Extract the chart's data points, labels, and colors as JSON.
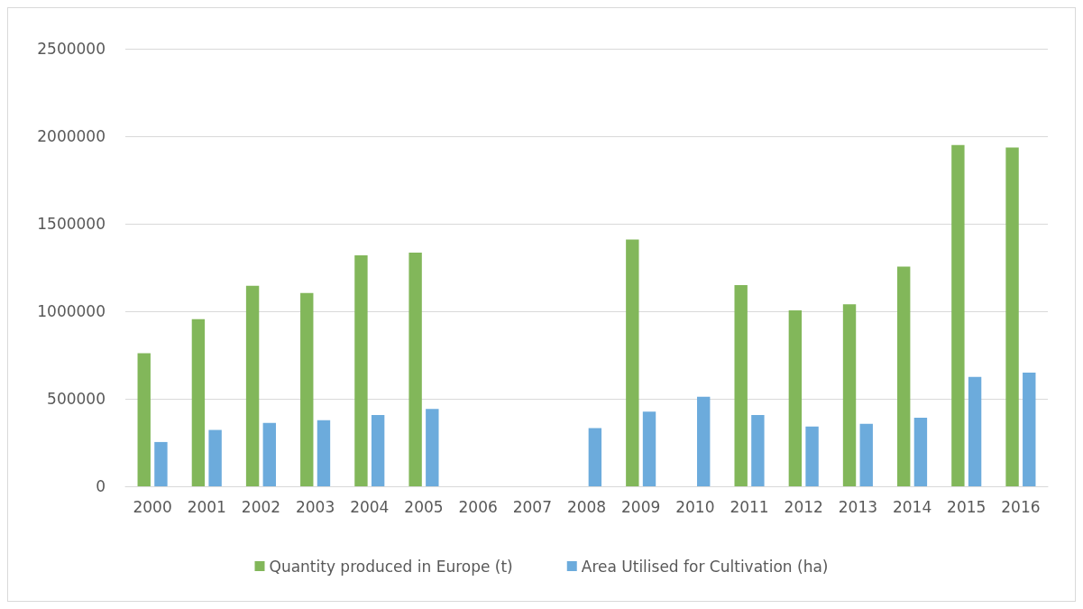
{
  "chart_data": {
    "type": "bar",
    "categories": [
      "2000",
      "2001",
      "2002",
      "2003",
      "2004",
      "2005",
      "2006",
      "2007",
      "2008",
      "2009",
      "2010",
      "2011",
      "2012",
      "2013",
      "2014",
      "2015",
      "2016"
    ],
    "series": [
      {
        "name": "Quantity produced in Europe (t)",
        "color": "#82b75a",
        "values": [
          760000,
          955000,
          1145000,
          1105000,
          1320000,
          1335000,
          null,
          null,
          null,
          1410000,
          null,
          1150000,
          1005000,
          1040000,
          1255000,
          1950000,
          1935000
        ]
      },
      {
        "name": "Area Utilised for Cultivation (ha)",
        "color": "#6cabdc",
        "values": [
          253000,
          322000,
          362000,
          377000,
          407000,
          442000,
          null,
          null,
          333000,
          427000,
          511000,
          407000,
          342000,
          357000,
          392000,
          625000,
          650000
        ]
      }
    ],
    "ylim": [
      0,
      2500000
    ],
    "yticks": [
      0,
      500000,
      1000000,
      1500000,
      2000000,
      2500000
    ],
    "grid": "y",
    "legend": "bottom"
  }
}
